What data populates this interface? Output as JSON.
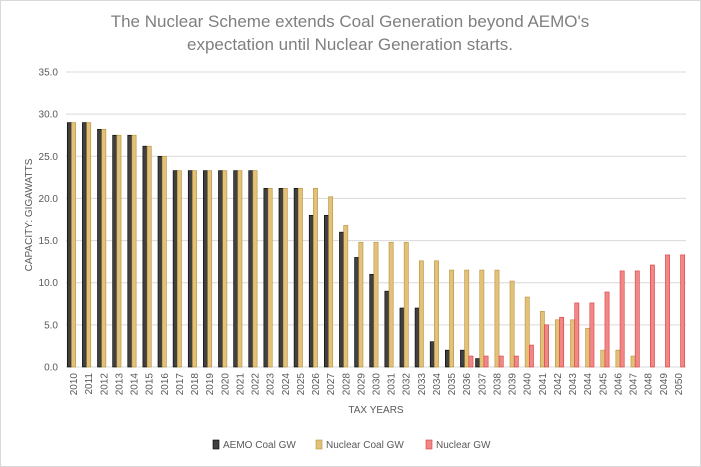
{
  "chart_data": {
    "type": "bar",
    "title_lines": [
      "The Nuclear Scheme extends Coal Generation beyond AEMO's",
      "expectation until Nuclear Generation starts."
    ],
    "xlabel": "TAX YEARS",
    "ylabel": "CAPACITY: GIGAWATTS",
    "ylim": [
      0,
      35
    ],
    "y_ticks": [
      "0.0",
      "5.0",
      "10.0",
      "15.0",
      "20.0",
      "25.0",
      "30.0",
      "35.0"
    ],
    "grid": true,
    "legend_position": "bottom",
    "categories": [
      "2010",
      "2011",
      "2012",
      "2013",
      "2014",
      "2015",
      "2016",
      "2017",
      "2018",
      "2019",
      "2020",
      "2021",
      "2022",
      "2023",
      "2024",
      "2025",
      "2026",
      "2027",
      "2028",
      "2029",
      "2030",
      "2031",
      "2032",
      "2033",
      "2034",
      "2035",
      "2036",
      "2037",
      "2038",
      "2039",
      "2040",
      "2041",
      "2042",
      "2043",
      "2044",
      "2045",
      "2046",
      "2047",
      "2048",
      "2049",
      "2050"
    ],
    "series": [
      {
        "name": "AEMO Coal GW",
        "color": "#404040",
        "values": [
          29.0,
          29.0,
          28.2,
          27.5,
          27.5,
          26.2,
          25.0,
          23.3,
          23.3,
          23.3,
          23.3,
          23.3,
          23.3,
          21.2,
          21.2,
          21.2,
          18.0,
          18.0,
          16.0,
          13.0,
          11.0,
          9.0,
          7.0,
          7.0,
          3.0,
          2.0,
          2.0,
          1.0,
          0,
          0,
          0,
          0,
          0,
          0,
          0,
          0,
          0,
          0,
          0,
          0,
          0
        ]
      },
      {
        "name": "Nuclear Coal GW",
        "color": "#e2c27a",
        "values": [
          29.0,
          29.0,
          28.2,
          27.5,
          27.5,
          26.2,
          25.0,
          23.3,
          23.3,
          23.3,
          23.3,
          23.3,
          23.3,
          21.2,
          21.2,
          21.2,
          21.2,
          20.2,
          16.8,
          14.8,
          14.8,
          14.8,
          14.8,
          12.6,
          12.6,
          11.5,
          11.5,
          11.5,
          11.5,
          10.2,
          8.3,
          6.6,
          5.6,
          5.6,
          4.6,
          2.0,
          2.0,
          1.3,
          0,
          0,
          0
        ]
      },
      {
        "name": "Nuclear GW",
        "color": "#f08888",
        "values": [
          0,
          0,
          0,
          0,
          0,
          0,
          0,
          0,
          0,
          0,
          0,
          0,
          0,
          0,
          0,
          0,
          0,
          0,
          0,
          0,
          0,
          0,
          0,
          0,
          0,
          0,
          1.3,
          1.3,
          1.3,
          1.3,
          2.6,
          5.0,
          5.9,
          7.6,
          7.6,
          8.9,
          11.4,
          11.4,
          12.1,
          13.3,
          13.3
        ]
      }
    ]
  }
}
